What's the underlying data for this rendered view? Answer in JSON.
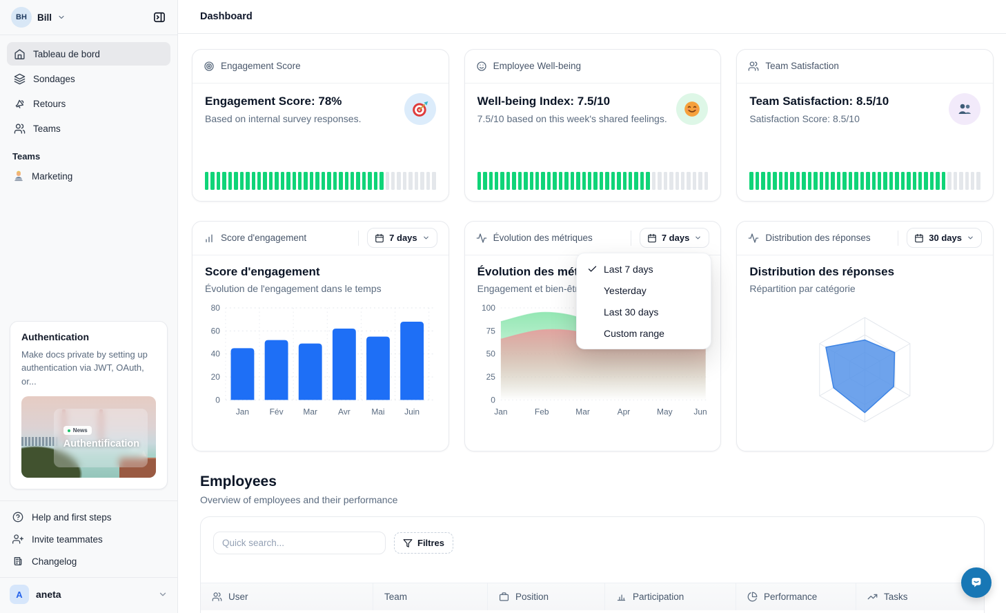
{
  "colors": {
    "sidebar-bg": "#f8f9fa",
    "active-item-bg": "#e8e9ec",
    "green": "#10d478",
    "seg-gray": "#e4e7eb",
    "badge-blue-bg": "#dcecfb",
    "badge-green-bg": "#def7e7",
    "badge-purple-bg": "#f2eafa",
    "accent-blue": "#1e6ff6",
    "fab-blue": "#1877b5"
  },
  "topbar": {
    "title": "Dashboard"
  },
  "sidebar": {
    "workspace": {
      "initials": "BH",
      "name": "Bill"
    },
    "nav": [
      {
        "icon": "home-icon",
        "label": "Tableau de bord",
        "active": true
      },
      {
        "icon": "layers-icon",
        "label": "Sondages",
        "active": false
      },
      {
        "icon": "megaphone-icon",
        "label": "Retours",
        "active": false
      },
      {
        "icon": "users-icon",
        "label": "Teams",
        "active": false
      }
    ],
    "teams_section": {
      "label": "Teams",
      "items": [
        {
          "icon": "technologist-emoji",
          "label": "Marketing"
        }
      ]
    },
    "promo": {
      "title": "Authentication",
      "body": "Make docs private by setting up authentication via JWT, OAuth, or...",
      "badge": "News",
      "caption": "Authentification"
    },
    "footer_nav": [
      {
        "icon": "help-circle-icon",
        "label": "Help and first steps"
      },
      {
        "icon": "user-plus-icon",
        "label": "Invite teammates"
      },
      {
        "icon": "newspaper-icon",
        "label": "Changelog"
      }
    ],
    "user": {
      "initial": "A",
      "name": "aneta"
    }
  },
  "stat_cards": [
    {
      "header": "Engagement Score",
      "icon": "target-icon",
      "badge_icon": "dart-target-emoji",
      "title": "Engagement Score: 78%",
      "subtitle": "Based on internal survey responses.",
      "progress_pct": 78
    },
    {
      "header": "Employee Well-being",
      "icon": "smiley-icon",
      "badge_icon": "smiling-face-emoji",
      "title": "Well-being Index: 7.5/10",
      "subtitle": "7.5/10 based on this week's shared feelings.",
      "progress_pct": 75
    },
    {
      "header": "Team Satisfaction",
      "icon": "users-icon",
      "badge_icon": "busts-emoji",
      "title": "Team Satisfaction: 8.5/10",
      "subtitle": "Satisfaction Score: 8.5/10",
      "progress_pct": 85
    }
  ],
  "chart_cards": [
    {
      "header": "Score d'engagement",
      "icon": "bar-chart-icon",
      "range": "7 days"
    },
    {
      "header": "Évolution des métriques",
      "icon": "activity-icon",
      "range": "7 days"
    },
    {
      "header": "Distribution des réponses",
      "icon": "activity-icon",
      "range": "30 days"
    }
  ],
  "range_dropdown": {
    "items": [
      "Last 7 days",
      "Yesterday",
      "Last 30 days",
      "Custom range"
    ],
    "selected": "Last 7 days"
  },
  "employees": {
    "title": "Employees",
    "subtitle": "Overview of employees and their performance",
    "search_placeholder": "Quick search...",
    "filter_label": "Filtres",
    "columns": [
      {
        "icon": "users-icon",
        "label": "User"
      },
      {
        "icon": null,
        "label": "Team"
      },
      {
        "icon": "briefcase-icon",
        "label": "Position"
      },
      {
        "icon": "bar-chart-icon",
        "label": "Participation"
      },
      {
        "icon": "pie-chart-icon",
        "label": "Performance"
      },
      {
        "icon": "trending-up-icon",
        "label": "Tasks"
      }
    ]
  },
  "chart_data": [
    {
      "id": "engagement-bar",
      "type": "bar",
      "title": "Score d'engagement",
      "subtitle": "Évolution de l'engagement dans le temps",
      "categories": [
        "Jan",
        "Fév",
        "Mar",
        "Avr",
        "Mai",
        "Juin"
      ],
      "values": [
        45,
        52,
        49,
        62,
        55,
        68
      ],
      "ylim": [
        0,
        80
      ],
      "yticks": [
        0,
        20,
        40,
        60,
        80
      ],
      "bar_color": "#1e6ff6",
      "grid": "dotted",
      "legend": "none"
    },
    {
      "id": "metrics-area",
      "type": "area",
      "title": "Évolution des métriques",
      "subtitle": "Engagement et bien-être",
      "x": [
        "Jan",
        "Feb",
        "Mar",
        "Apr",
        "May",
        "Jun"
      ],
      "series": [
        {
          "name": "engagement",
          "color": "#8fe6b0",
          "values": [
            85,
            95,
            88,
            64,
            74,
            82
          ]
        },
        {
          "name": "bien-être",
          "color": "#e5a09e",
          "values": [
            66,
            76,
            73,
            57,
            62,
            70
          ]
        }
      ],
      "ylim": [
        0,
        100
      ],
      "yticks": [
        0,
        25,
        50,
        75,
        100
      ],
      "grid": "dotted",
      "legend": "none"
    },
    {
      "id": "responses-radar",
      "type": "radar",
      "title": "Distribution des réponses",
      "subtitle": "Répartition par catégorie",
      "axes_count": 6,
      "values": [
        57,
        66,
        64,
        82,
        69,
        86
      ],
      "max": 100,
      "fill": "#5593e9",
      "stroke": "#3c83e4",
      "rings": 3
    }
  ],
  "progress_segments_total": 40
}
